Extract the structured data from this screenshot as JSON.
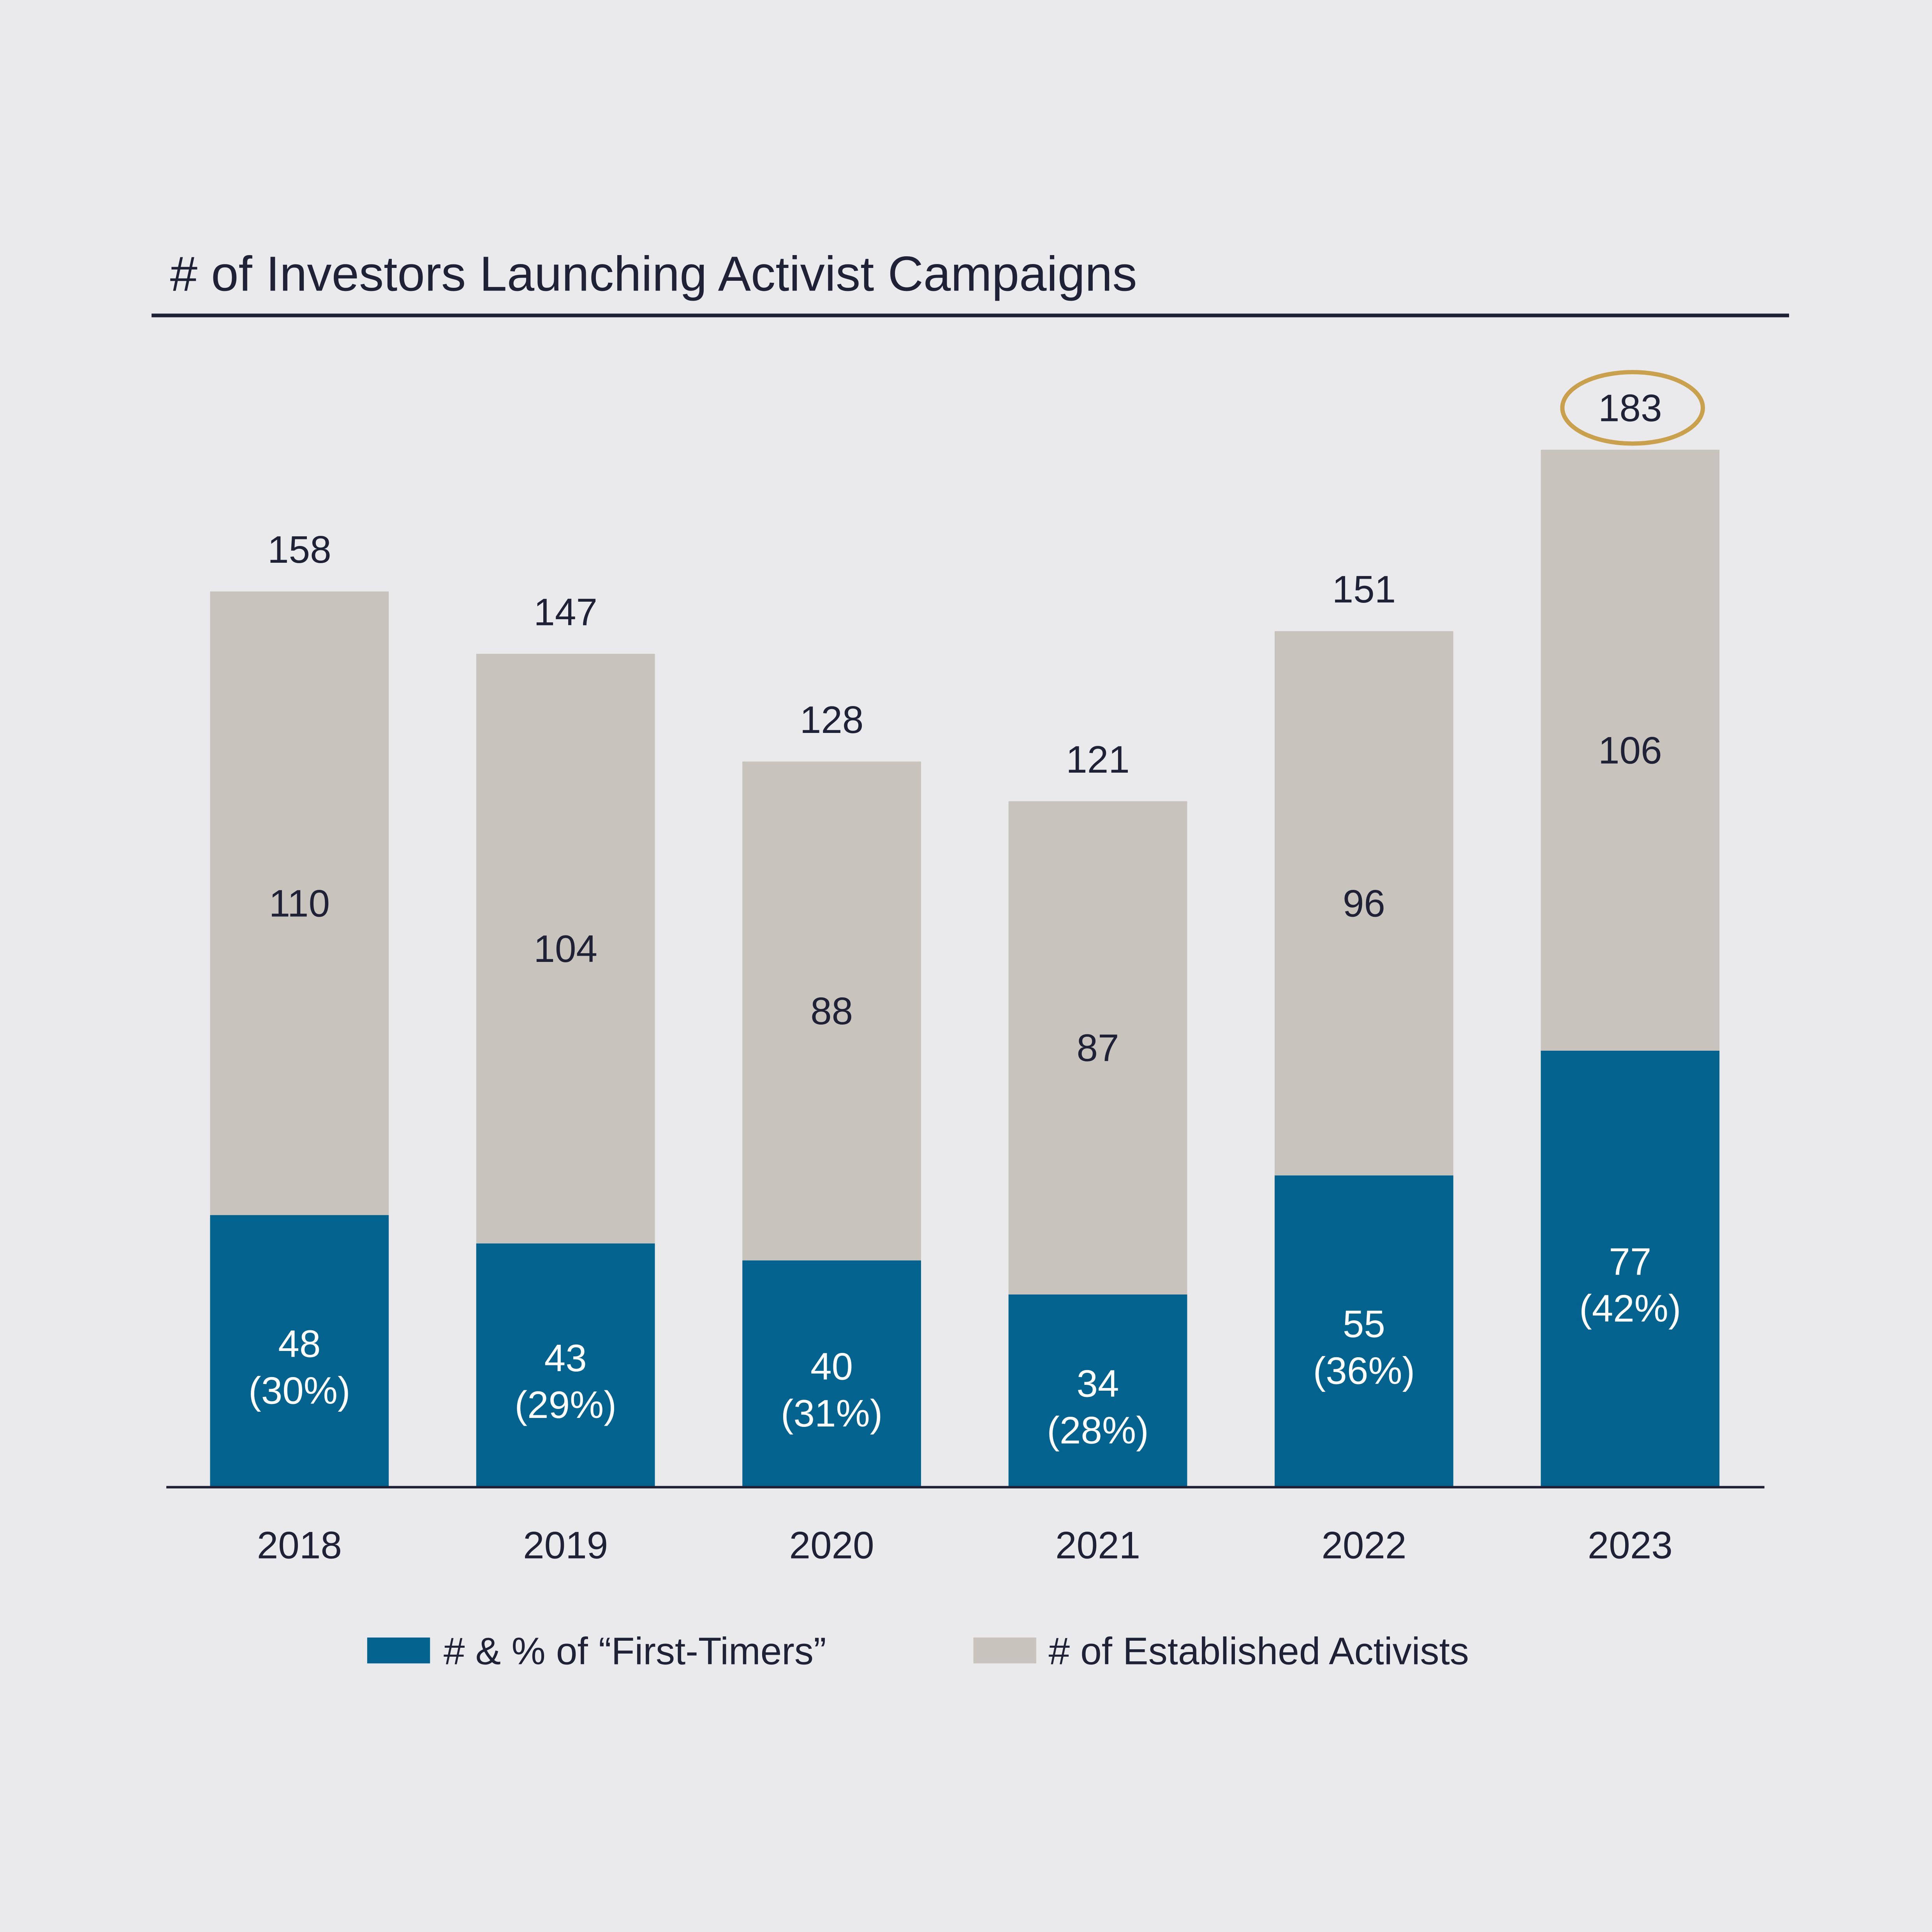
{
  "chart_data": {
    "type": "bar",
    "stacked": true,
    "title": "# of Investors Launching Activist Campaigns",
    "xlabel": "",
    "ylabel": "",
    "ylim": [
      0,
      183
    ],
    "grid": false,
    "legend_position": "bottom",
    "categories": [
      "2018",
      "2019",
      "2020",
      "2021",
      "2022",
      "2023"
    ],
    "series": [
      {
        "name": "# & % of “First-Timers”",
        "values": [
          48,
          43,
          40,
          34,
          55,
          77
        ],
        "percent_labels": [
          "(30%)",
          "(29%)",
          "(31%)",
          "(28%)",
          "(36%)",
          "(42%)"
        ],
        "color": "#03628E"
      },
      {
        "name": "# of Established Activists",
        "values": [
          110,
          104,
          88,
          87,
          96,
          106
        ],
        "color": "#C8C3BD"
      }
    ],
    "totals": [
      158,
      147,
      128,
      121,
      151,
      183
    ],
    "highlighted_total": "2023",
    "highlight_color": "#C9A04E"
  }
}
